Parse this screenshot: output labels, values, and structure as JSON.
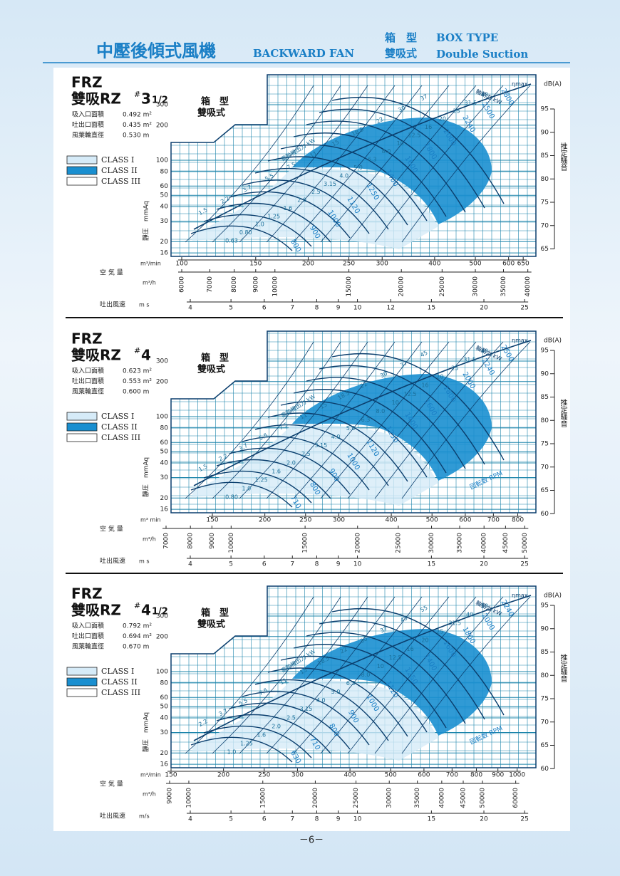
{
  "header": {
    "title_cn": "中壓後傾式風機",
    "title_en": "BACKWARD FAN",
    "box_cn": "箱　型",
    "suction_cn": "雙吸式",
    "box_en": "BOX TYPE",
    "suction_en": "Double Suction"
  },
  "footer": {
    "page": "－6－"
  },
  "panels": [
    {
      "prefix": "FRZ",
      "model": "雙吸RZ",
      "mark": "#",
      "size": "3",
      "size_frac": "1/2",
      "box": "箱　型",
      "suction": "雙吸式",
      "specs": [
        {
          "label": "吸入口面積",
          "value": "0.492 m²"
        },
        {
          "label": "吐出口面積",
          "value": "0.435 m²"
        },
        {
          "label": "風葉輪直徑",
          "value": "0.530 m"
        }
      ],
      "classes": [
        "CLASS I",
        "CLASS II",
        "CLASS III"
      ],
      "pressure_label": "靜圧　mmAq",
      "db_label": "dB(A)",
      "noise_label": "推定騷音",
      "eta_label": "ηmax",
      "shaft_label": "軸動力 kW",
      "motor_label": "電動機出力 kW",
      "flow_label": "空 気 量",
      "flow_min_unit": "m³/min",
      "flow_h_unit": "m³/h",
      "velocity_label": "吐出風速",
      "velocity_unit": "m s",
      "pressure_ticks": [
        16,
        20,
        30,
        40,
        50,
        60,
        80,
        100,
        200,
        300
      ],
      "db_ticks": [
        65,
        70,
        75,
        80,
        85,
        90,
        95
      ],
      "flow_min_ticks": [
        100,
        150,
        200,
        250,
        300,
        400,
        500,
        600,
        650
      ],
      "flow_h_ticks": [
        6000,
        7000,
        8000,
        9000,
        10000,
        15000,
        20000,
        25000,
        30000,
        35000,
        40000
      ],
      "velocity_ticks": [
        4,
        5,
        6,
        7,
        8,
        9,
        10,
        12,
        15,
        20,
        25
      ],
      "motor_kw": [
        "1.5",
        "2.2",
        "3.7",
        "5.5",
        "7.5",
        "11",
        "15",
        "18.5",
        "22",
        "30",
        "37"
      ],
      "shaft_kw": [
        "0.63",
        "0.80",
        "1.0",
        "1.25",
        "1.6",
        "2.0",
        "2.5",
        "3.15",
        "4.0",
        "5.0",
        "6.3",
        "8.0",
        "10",
        "12.5",
        "16",
        "20",
        "25",
        "31.5",
        "40"
      ],
      "rpm": [
        "800",
        "900",
        "1000",
        "1120",
        "1250",
        "1400",
        "1600",
        "1800",
        "2000",
        "2240",
        "2500",
        "2800"
      ]
    },
    {
      "prefix": "FRZ",
      "model": "雙吸RZ",
      "mark": "#",
      "size": "4",
      "box": "箱　型",
      "suction": "雙吸式",
      "specs": [
        {
          "label": "吸入口面積",
          "value": "0.623 m²"
        },
        {
          "label": "吐出口面積",
          "value": "0.553 m²"
        },
        {
          "label": "風葉輪直徑",
          "value": "0.600 m"
        }
      ],
      "classes": [
        "CLASS I",
        "CLASS II",
        "CLASS III"
      ],
      "pressure_label": "靜圧　mmAq",
      "db_label": "dB(A)",
      "noise_label": "推定騷音",
      "eta_label": "ηmax",
      "shaft_label": "軸動力 kW",
      "motor_label": "電動機出力 kW",
      "rpm_label": "回転数 RPM",
      "flow_label": "空 気 量",
      "flow_min_unit": "m³ min",
      "flow_h_unit": "m³/h",
      "velocity_label": "吐出風速",
      "velocity_unit": "m s",
      "pressure_ticks": [
        16,
        20,
        30,
        40,
        50,
        60,
        80,
        100,
        200,
        300
      ],
      "db_ticks": [
        60,
        65,
        70,
        75,
        80,
        85,
        90,
        95
      ],
      "flow_min_ticks": [
        150,
        200,
        250,
        300,
        400,
        500,
        600,
        700,
        800
      ],
      "flow_h_ticks": [
        7000,
        8000,
        9000,
        10000,
        15000,
        20000,
        25000,
        30000,
        35000,
        40000,
        45000,
        50000
      ],
      "velocity_ticks": [
        4,
        5,
        6,
        7,
        8,
        9,
        10,
        15,
        20,
        25
      ],
      "motor_kw": [
        "1.5",
        "2.2",
        "3.7",
        "5.5",
        "7.5",
        "11",
        "15",
        "18.5",
        "22",
        "30",
        "37",
        "45"
      ],
      "shaft_kw": [
        "0.80",
        "1.0",
        "1.25",
        "1.6",
        "2.0",
        "2.5",
        "3.15",
        "4.0",
        "5.0",
        "6.3",
        "8.0",
        "10",
        "12.5",
        "16",
        "20",
        "25",
        "31.5",
        "40"
      ],
      "rpm": [
        "710",
        "800",
        "900",
        "1000",
        "1120",
        "1250",
        "1400",
        "1600",
        "1800",
        "2000",
        "2240",
        "2500"
      ]
    },
    {
      "prefix": "FRZ",
      "model": "雙吸RZ",
      "mark": "#",
      "size": "4",
      "size_frac": "1/2",
      "box": "箱　型",
      "suction": "雙吸式",
      "specs": [
        {
          "label": "吸入口面積",
          "value": "0.792 m²"
        },
        {
          "label": "吐出口面積",
          "value": "0.694 m²"
        },
        {
          "label": "風葉輪直徑",
          "value": "0.670 m"
        }
      ],
      "classes": [
        "CLASS I",
        "CLASS II",
        "CLASS III"
      ],
      "pressure_label": "靜圧　mmAq",
      "db_label": "dB(A)",
      "noise_label": "推定騷音",
      "eta_label": "ηmax",
      "shaft_label": "軸動力 kW",
      "motor_label": "電動機出力 kW",
      "rpm_label": "回転数 RPM",
      "flow_label": "空 気 量",
      "flow_min_unit": "m³/min",
      "flow_h_unit": "m³/h",
      "velocity_label": "吐出風速",
      "velocity_unit": "m/s",
      "pressure_ticks": [
        16,
        20,
        30,
        40,
        50,
        60,
        80,
        100,
        200,
        300
      ],
      "db_ticks": [
        60,
        65,
        70,
        75,
        80,
        85,
        90,
        95
      ],
      "flow_min_ticks": [
        150,
        200,
        250,
        300,
        400,
        500,
        600,
        700,
        800,
        900,
        1000
      ],
      "flow_h_ticks": [
        9000,
        10000,
        15000,
        20000,
        25000,
        30000,
        35000,
        40000,
        45000,
        50000,
        60000
      ],
      "velocity_ticks": [
        4,
        5,
        6,
        7,
        8,
        9,
        10,
        15,
        20,
        25
      ],
      "motor_kw": [
        "2.2",
        "3.7",
        "5.5",
        "7.5",
        "11",
        "15",
        "18.5",
        "22",
        "30",
        "37",
        "45",
        "55"
      ],
      "shaft_kw": [
        "1.0",
        "1.25",
        "1.6",
        "2.0",
        "2.5",
        "3.15",
        "4.0",
        "5.0",
        "6.3",
        "8.0",
        "10",
        "12.5",
        "16",
        "20",
        "25",
        "31.5",
        "40",
        "50"
      ],
      "rpm": [
        "630",
        "710",
        "800",
        "900",
        "1000",
        "1120",
        "1250",
        "1400",
        "1600",
        "1800",
        "2000",
        "2240"
      ]
    }
  ]
}
